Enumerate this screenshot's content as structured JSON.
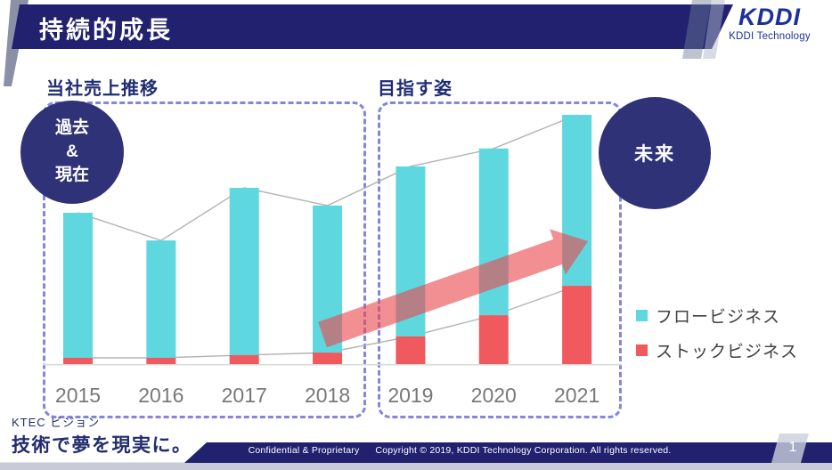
{
  "header": {
    "title": "持続的成長"
  },
  "logo": {
    "brand": "KDDI",
    "subtitle": "KDDI Technology"
  },
  "sections": {
    "left_label": "当社売上推移",
    "right_label": "目指す姿",
    "past_circle": "過去\n&\n現在",
    "future_circle": "未来"
  },
  "chart_data": {
    "type": "bar",
    "subtype": "stacked-bars-with-trend-lines",
    "title": "当社売上推移 / 目指す姿",
    "categories": [
      "2015",
      "2016",
      "2017",
      "2018",
      "2019",
      "2020",
      "2021"
    ],
    "series": [
      {
        "name": "フロービジネス",
        "color": "#5ed7de",
        "values": [
          58.2,
          47.1,
          67.1,
          59.0,
          68.2,
          66.9,
          68.6
        ]
      },
      {
        "name": "ストックビジネス",
        "color": "#f0595d",
        "values": [
          2.5,
          2.5,
          3.6,
          4.6,
          11.1,
          19.6,
          31.4
        ]
      }
    ],
    "line_overlays": [
      {
        "name": "total-trend",
        "follows": "total",
        "color": "#b3b3b3"
      },
      {
        "name": "stock-trend",
        "follows": "ストックビジネス",
        "color": "#b3b3b3"
      }
    ],
    "groups": [
      {
        "label": "過去 & 現在",
        "categories": [
          "2015",
          "2016",
          "2017",
          "2018"
        ]
      },
      {
        "label": "未来",
        "categories": [
          "2019",
          "2020",
          "2021"
        ]
      }
    ],
    "annotations": [
      {
        "type": "growth-arrow",
        "color": "rgba(234,75,80,0.62)",
        "meaning": "ストックビジネス拡大"
      }
    ],
    "ylim": [
      0,
      100
    ],
    "unit": "relative scale (estimated from pixels, 2021 total = 100)",
    "xlabel": "",
    "ylabel": "",
    "grid": false,
    "legend_position": "right"
  },
  "footer": {
    "vision_label": "KTEC ビジョン",
    "vision_text": "技術で夢を現実に。",
    "confidential": "Confidential & Proprietary",
    "copyright": "Copyright © 2019, KDDI Technology Corporation. All rights reserved.",
    "page_number": "1"
  }
}
